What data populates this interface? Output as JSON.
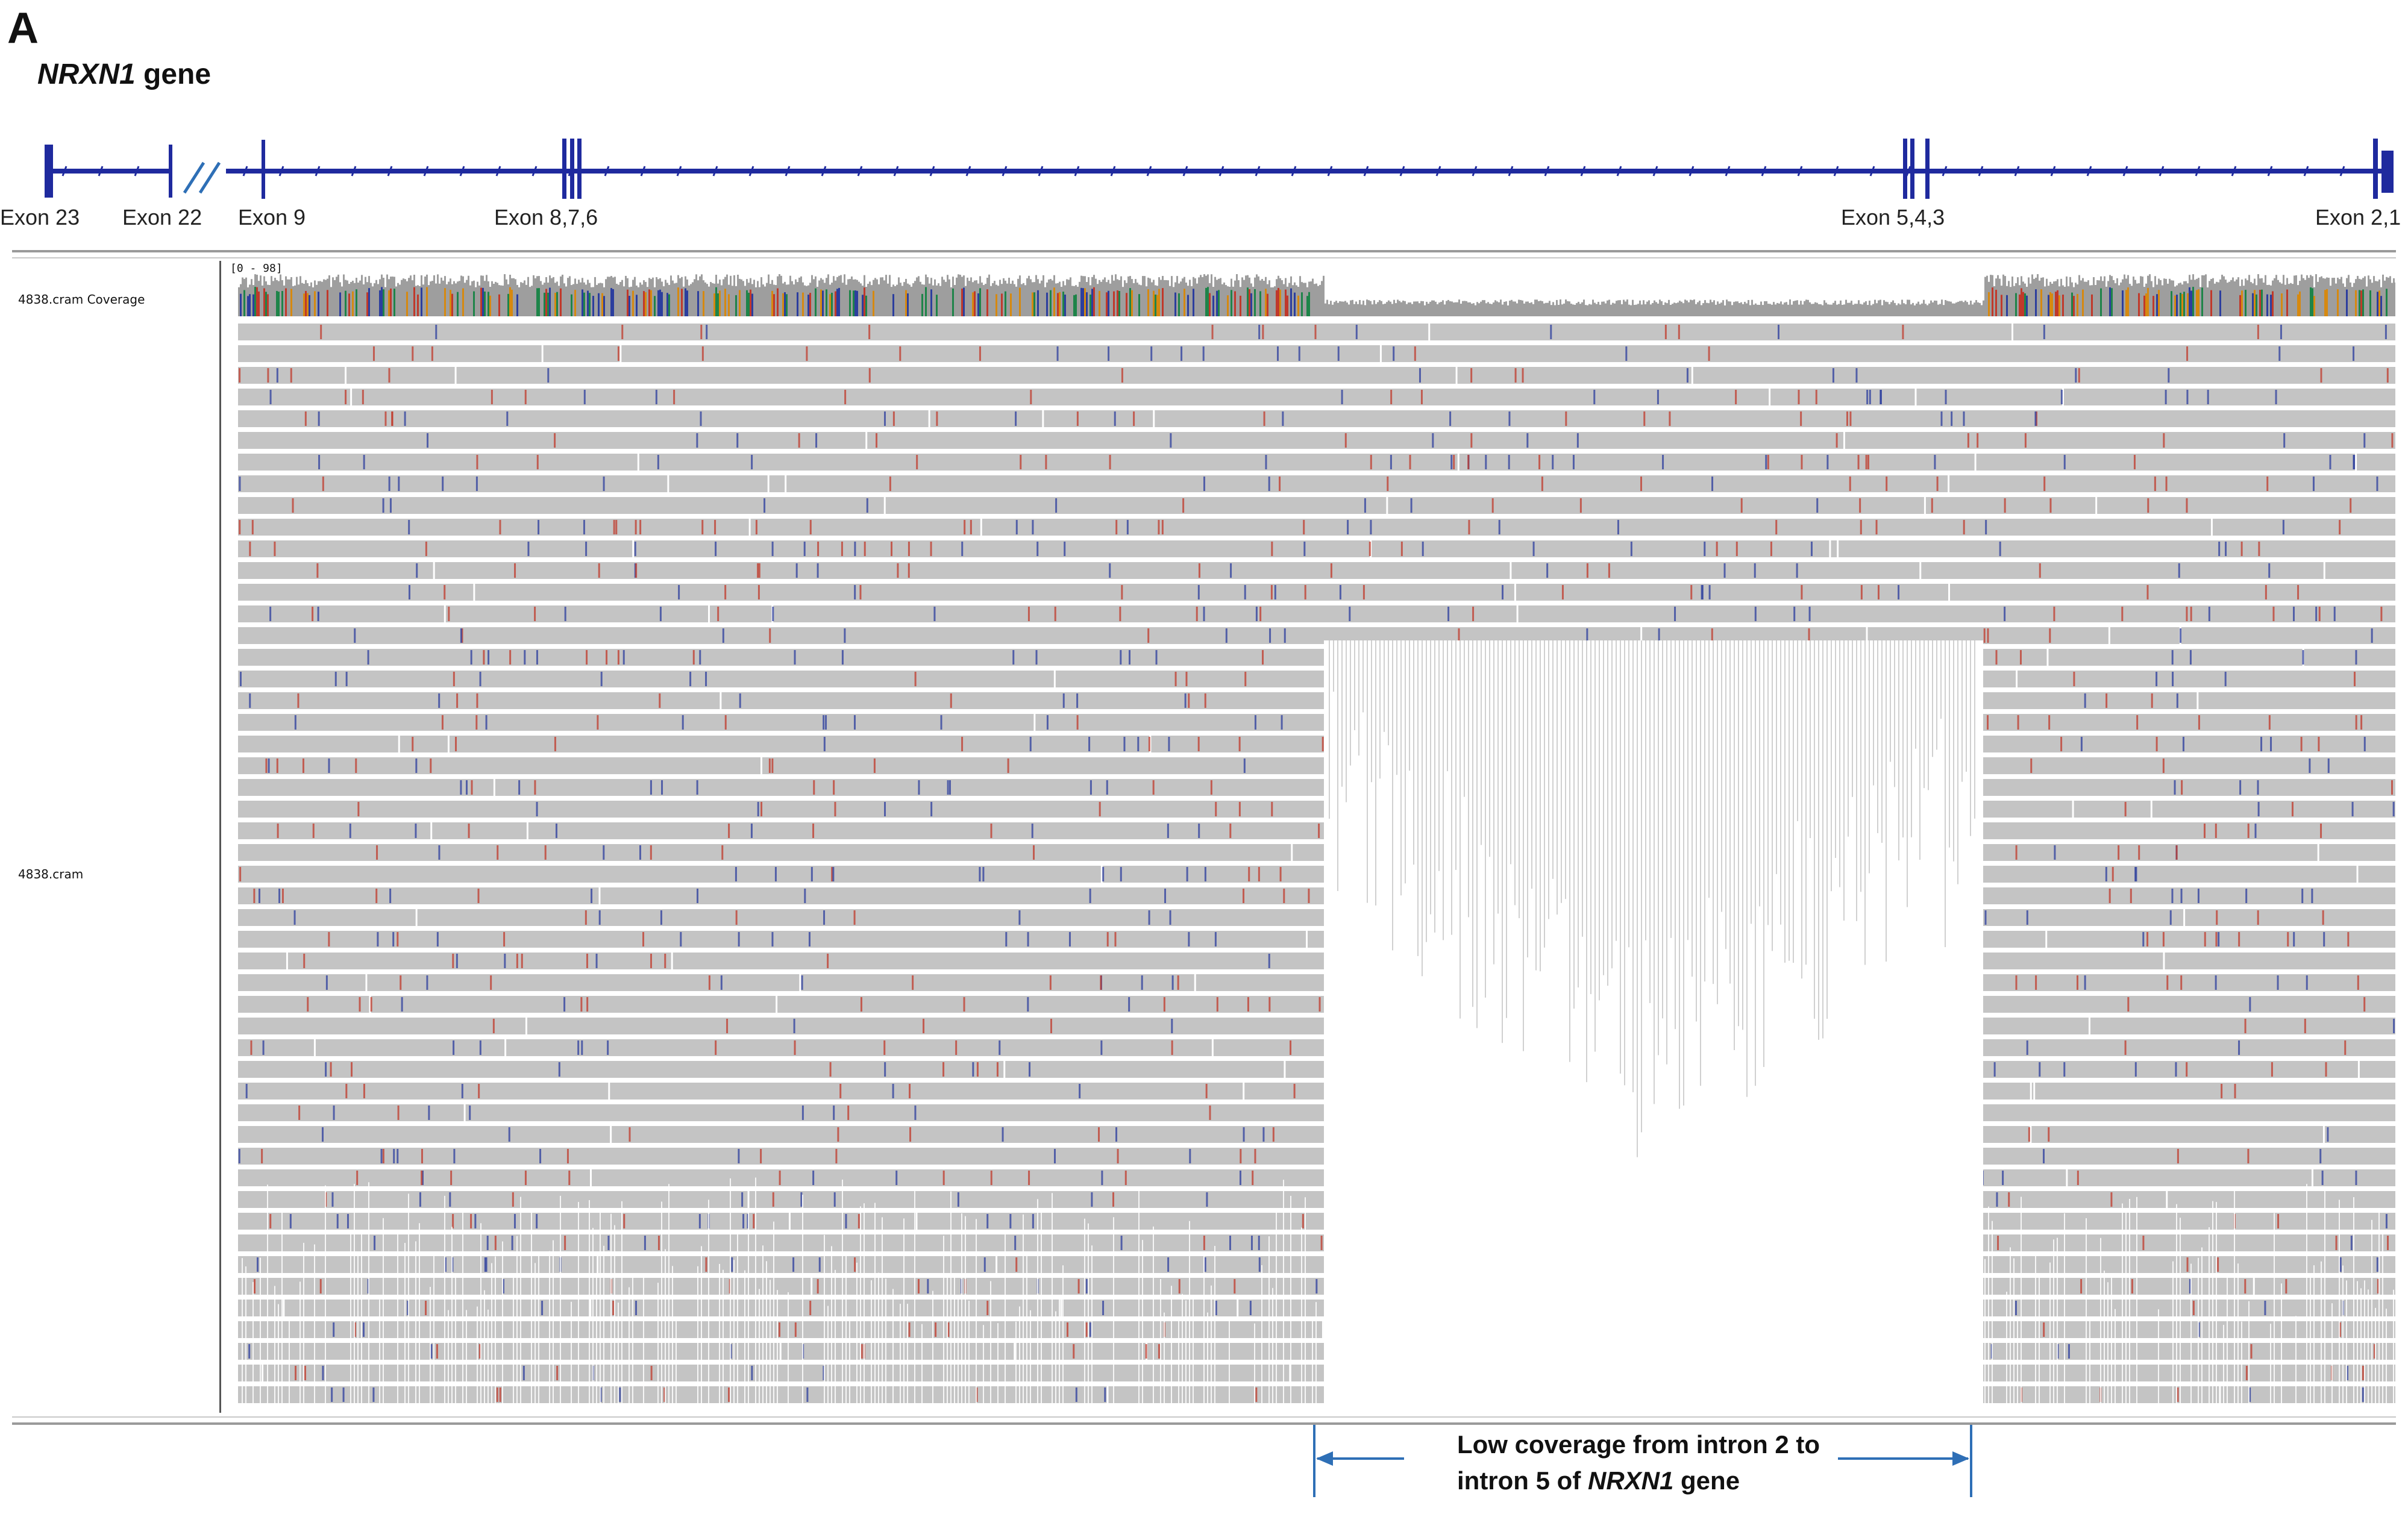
{
  "panel_label": "A",
  "gene_title": {
    "name": "NRXN1",
    "suffix": " gene"
  },
  "exon_labels": [
    "Exon 23",
    "Exon 22",
    "Exon 9",
    "Exon 8,7,6",
    "Exon 5,4,3",
    "Exon 2,1"
  ],
  "tracks": {
    "coverage": "4838.cram Coverage",
    "alignment": "4838.cram"
  },
  "coverage_range": "[0 - 98]",
  "annotation": {
    "line1": "Low coverage from intron 2 to",
    "line2_prefix": "intron 5 of ",
    "line2_gene": "NRXN1",
    "line2_suffix": " gene"
  },
  "colors": {
    "gene_line": "#1f2a9e",
    "annotation_arrow": "#2e6fb6",
    "read_fill": "#c4c4c4",
    "mismatch_red": "#c0392b",
    "mismatch_blue": "#2c3e9e"
  }
}
